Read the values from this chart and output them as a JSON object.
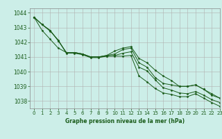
{
  "title": "Graphe pression niveau de la mer (hPa)",
  "background_color": "#cceee8",
  "grid_color": "#b0b0b0",
  "line_color": "#1a5c1a",
  "xlim": [
    -0.5,
    23
  ],
  "ylim": [
    1037.5,
    1044.3
  ],
  "yticks": [
    1038,
    1039,
    1040,
    1041,
    1042,
    1043,
    1044
  ],
  "xticks": [
    0,
    1,
    2,
    3,
    4,
    5,
    6,
    7,
    8,
    9,
    10,
    11,
    12,
    13,
    14,
    15,
    16,
    17,
    18,
    19,
    20,
    21,
    22,
    23
  ],
  "series": [
    [
      1043.7,
      1043.2,
      1042.8,
      1042.1,
      1041.3,
      1041.3,
      1041.2,
      1041.0,
      1041.0,
      1041.1,
      1041.2,
      1041.5,
      1041.6,
      1040.6,
      1040.3,
      1039.6,
      1039.2,
      1039.1,
      1039.0,
      1039.0,
      1039.1,
      1038.8,
      1038.4,
      1038.2
    ],
    [
      1043.7,
      1043.2,
      1042.8,
      1042.1,
      1041.3,
      1041.3,
      1041.2,
      1041.0,
      1041.0,
      1041.1,
      1041.4,
      1041.6,
      1041.7,
      1040.9,
      1040.6,
      1040.1,
      1039.7,
      1039.4,
      1039.0,
      1039.0,
      1039.1,
      1038.8,
      1038.5,
      1038.2
    ],
    [
      1043.7,
      1043.2,
      1042.75,
      1042.15,
      1041.25,
      1041.25,
      1041.15,
      1040.95,
      1040.95,
      1041.05,
      1041.1,
      1041.25,
      1041.35,
      1040.3,
      1040.05,
      1039.45,
      1038.9,
      1038.75,
      1038.55,
      1038.5,
      1038.65,
      1038.4,
      1038.1,
      1037.9
    ],
    [
      1043.7,
      1042.8,
      1042.2,
      1041.6,
      1041.3,
      1041.3,
      1041.2,
      1041.0,
      1041.0,
      1041.05,
      1041.05,
      1041.05,
      1041.1,
      1039.7,
      1039.3,
      1038.85,
      1038.55,
      1038.45,
      1038.3,
      1038.3,
      1038.5,
      1038.2,
      1037.9,
      1037.65
    ]
  ],
  "figsize": [
    3.2,
    2.0
  ],
  "dpi": 100
}
